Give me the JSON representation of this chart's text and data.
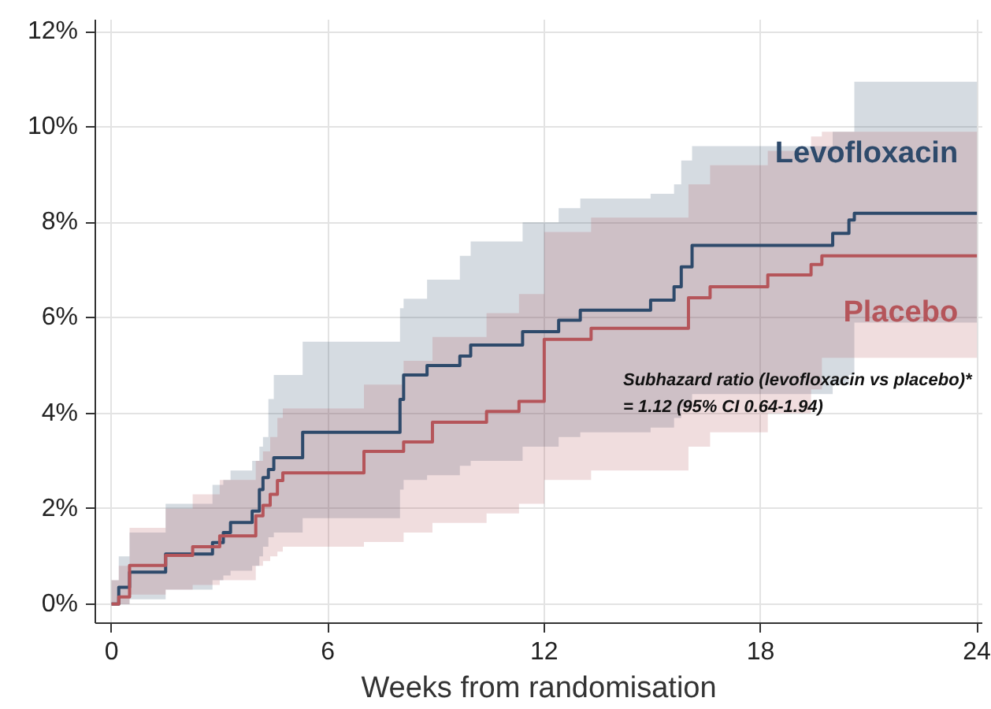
{
  "chart_data": {
    "type": "step",
    "xlabel": "Weeks from randomisation",
    "xlim": [
      -0.45,
      24.15
    ],
    "xticks": [
      0,
      6,
      12,
      18,
      24
    ],
    "ylim": [
      -0.4,
      12.25
    ],
    "yticks": [
      {
        "value": 0,
        "label": "0%"
      },
      {
        "value": 2,
        "label": "2%"
      },
      {
        "value": 4,
        "label": "4%"
      },
      {
        "value": 6,
        "label": "6%"
      },
      {
        "value": 8,
        "label": "8%"
      },
      {
        "value": 10,
        "label": "10%"
      },
      {
        "value": 12,
        "label": "12%"
      }
    ],
    "grid": true,
    "legend": false,
    "series": [
      {
        "name": "Levofloxacin",
        "color": "#2e4a6b",
        "x": [
          0,
          0.2,
          0.5,
          1.5,
          2.8,
          3.1,
          3.3,
          3.9,
          4.1,
          4.2,
          4.35,
          4.5,
          5.3,
          8.0,
          8.1,
          8.75,
          9.66,
          9.96,
          11.4,
          12.4,
          13.0,
          14.95,
          15.6,
          15.8,
          16.1,
          20.0,
          20.45,
          20.6,
          24
        ],
        "values": [
          0,
          0.35,
          0.67,
          1.05,
          1.29,
          1.5,
          1.71,
          1.95,
          2.4,
          2.65,
          2.82,
          3.07,
          3.6,
          4.29,
          4.8,
          5.0,
          5.2,
          5.43,
          5.71,
          5.95,
          6.16,
          6.37,
          6.65,
          7.07,
          7.52,
          7.77,
          8.05,
          8.19,
          8.19
        ],
        "upper": [
          0.5,
          1.0,
          1.5,
          2.1,
          2.5,
          2.6,
          2.8,
          3.0,
          3.3,
          3.5,
          4.3,
          4.8,
          5.5,
          6.2,
          6.4,
          6.8,
          7.3,
          7.6,
          8.0,
          8.3,
          8.5,
          8.6,
          8.8,
          9.3,
          9.6,
          9.9,
          9.9,
          10.95,
          10.95
        ],
        "lower": [
          0,
          0,
          0.1,
          0.3,
          0.5,
          0.6,
          0.7,
          0.8,
          1.0,
          1.2,
          1.4,
          1.5,
          1.8,
          2.4,
          2.6,
          2.7,
          2.9,
          3.0,
          3.3,
          3.5,
          3.6,
          3.7,
          3.9,
          4.1,
          4.4,
          4.6,
          4.8,
          5.9,
          5.9
        ]
      },
      {
        "name": "Placebo",
        "color": "#b5555a",
        "x": [
          0,
          0.2,
          0.5,
          1.5,
          2.25,
          3.0,
          4.0,
          4.2,
          4.4,
          4.6,
          4.75,
          7.0,
          8.1,
          8.9,
          10.4,
          11.3,
          12.0,
          13.3,
          16.0,
          16.6,
          18.2,
          19.4,
          19.7,
          24
        ],
        "values": [
          0,
          0.15,
          0.81,
          1.02,
          1.2,
          1.43,
          1.85,
          2.07,
          2.3,
          2.59,
          2.75,
          3.2,
          3.4,
          3.81,
          4.04,
          4.25,
          5.55,
          5.78,
          6.42,
          6.65,
          6.9,
          7.12,
          7.3,
          7.3
        ],
        "upper": [
          0.5,
          0.8,
          1.6,
          2.0,
          2.3,
          2.6,
          3.0,
          3.2,
          3.5,
          3.9,
          4.1,
          4.6,
          5.1,
          5.6,
          6.1,
          6.5,
          7.8,
          8.1,
          8.8,
          9.2,
          9.5,
          9.8,
          9.9,
          9.9
        ],
        "lower": [
          0,
          0,
          0.2,
          0.3,
          0.4,
          0.5,
          0.8,
          0.9,
          1.0,
          1.1,
          1.2,
          1.3,
          1.5,
          1.7,
          1.9,
          2.1,
          2.6,
          2.8,
          3.3,
          3.6,
          4.0,
          4.5,
          5.16,
          5.16
        ]
      }
    ],
    "annotations": [
      "Subhazard ratio (levofloxacin  vs placebo)*",
      "= 1.12 (95% CI 0.64-1.94)"
    ]
  }
}
